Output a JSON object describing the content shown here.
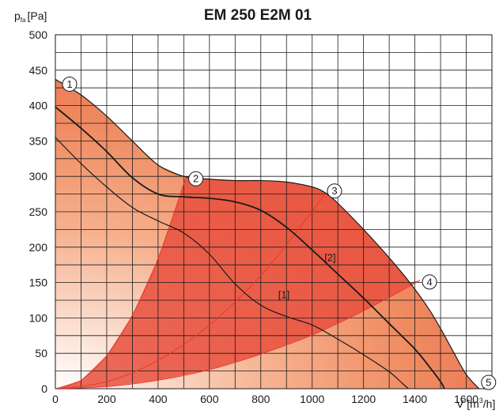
{
  "chart_data": {
    "type": "line",
    "title": "EM 250 E2M 01",
    "ylabel": "p",
    "ylabel_sub": "fa",
    "ylabel_unit": "[Pa]",
    "xlabel": "V [m",
    "xlabel_sup": "3",
    "xlabel_end": "/h]",
    "xlim": [
      0,
      1700
    ],
    "ylim": [
      0,
      500
    ],
    "x_ticks": [
      0,
      200,
      400,
      600,
      800,
      1000,
      1200,
      1400,
      1600
    ],
    "y_ticks": [
      0,
      50,
      100,
      150,
      200,
      250,
      300,
      350,
      400,
      450,
      500
    ],
    "grid": true,
    "grid_step_x": 100,
    "grid_step_y": 25,
    "colors": {
      "fill_dark": "#e8503e",
      "fill_mid": "#ef8a60",
      "fill_light": "#ffffff",
      "grid": "#1a1a1a",
      "curve": "#1a1a1a",
      "system_line": "#e83a2c"
    },
    "envelope": {
      "x": [
        0,
        100,
        200,
        300,
        400,
        500,
        600,
        700,
        800,
        900,
        1000,
        1050,
        1100,
        1200,
        1300,
        1380,
        1450,
        1500,
        1550,
        1600,
        1650
      ],
      "y": [
        437,
        415,
        385,
        350,
        316,
        300,
        296,
        294,
        294,
        292,
        285,
        277,
        262,
        225,
        185,
        150,
        115,
        85,
        52,
        20,
        0
      ]
    },
    "series": [
      {
        "name": "[2]",
        "x": [
          0,
          100,
          200,
          300,
          400,
          500,
          600,
          700,
          800,
          900,
          1000,
          1100,
          1200,
          1300,
          1400,
          1450,
          1500,
          1515
        ],
        "y": [
          398,
          368,
          335,
          298,
          275,
          271,
          269,
          264,
          252,
          228,
          196,
          162,
          128,
          92,
          56,
          34,
          10,
          0
        ]
      },
      {
        "name": "[1]",
        "x": [
          0,
          100,
          200,
          300,
          400,
          500,
          600,
          700,
          800,
          900,
          1000,
          1100,
          1200,
          1300,
          1350,
          1375
        ],
        "y": [
          355,
          318,
          285,
          256,
          237,
          220,
          190,
          148,
          118,
          102,
          90,
          70,
          48,
          24,
          8,
          0
        ]
      }
    ],
    "system_curves": [
      {
        "x": [
          0,
          100,
          200,
          300,
          400,
          510
        ],
        "y": [
          0,
          12,
          47,
          104,
          184,
          300
        ]
      },
      {
        "x": [
          0,
          200,
          400,
          600,
          800,
          1000,
          1050
        ],
        "y": [
          0,
          10,
          40,
          90,
          160,
          250,
          276
        ]
      },
      {
        "x": [
          0,
          200,
          400,
          600,
          800,
          1000,
          1200,
          1420
        ],
        "y": [
          0,
          3,
          12,
          27,
          49,
          76,
          110,
          153
        ]
      }
    ],
    "operating_points": [
      {
        "label": "1",
        "x": 0,
        "y": 437
      },
      {
        "label": "2",
        "x": 510,
        "y": 300
      },
      {
        "label": "3",
        "x": 1050,
        "y": 276
      },
      {
        "label": "4",
        "x": 1420,
        "y": 153
      },
      {
        "label": "5",
        "x": 1650,
        "y": 0
      }
    ],
    "curve_labels": [
      {
        "text": "[2]",
        "x": 1070,
        "y": 180
      },
      {
        "text": "[1]",
        "x": 890,
        "y": 128
      }
    ]
  }
}
